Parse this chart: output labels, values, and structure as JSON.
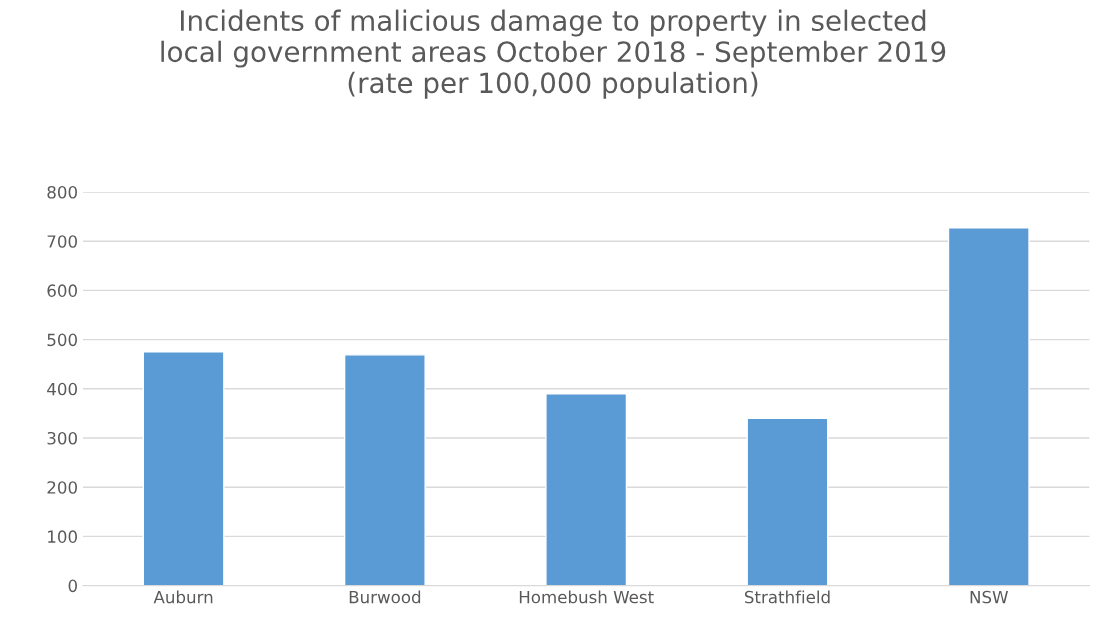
{
  "chart_data": {
    "type": "bar",
    "title": "Incidents of malicious damage to property in selected\nlocal government areas October 2018 - September 2019\n(rate per 100,000 population)",
    "categories": [
      "Auburn",
      "Burwood",
      "Homebush West",
      "Strathfield",
      "NSW"
    ],
    "values": [
      475,
      469,
      390,
      340,
      727
    ],
    "color": "#5b9bd5",
    "ylim": [
      0,
      800
    ],
    "yticks": [
      0,
      100,
      200,
      300,
      400,
      500,
      600,
      700,
      800
    ],
    "grid": "y"
  }
}
